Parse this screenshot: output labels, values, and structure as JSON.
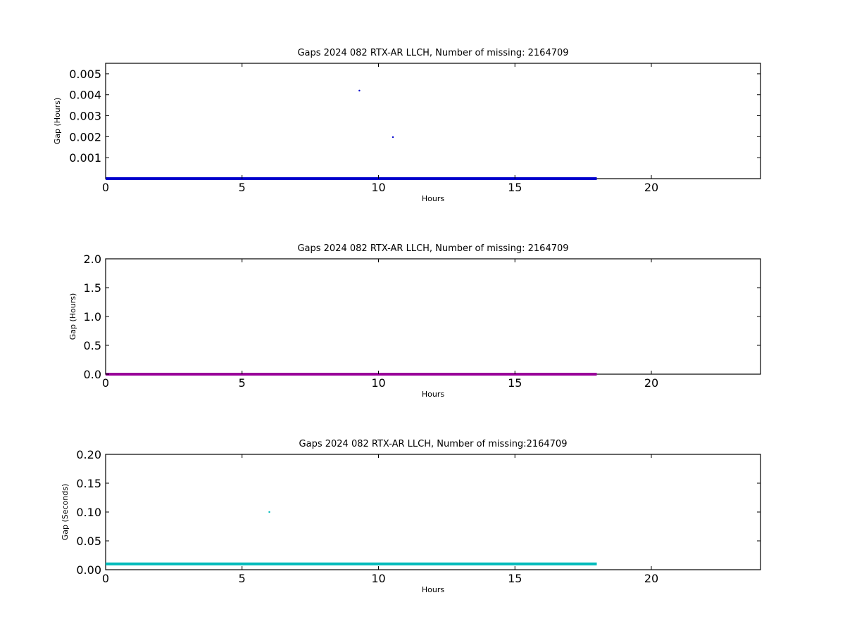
{
  "chart_data": [
    {
      "type": "scatter",
      "title": "Gaps 2024 082 RTX-AR  LLCH, Number of missing: 2164709",
      "xlabel": "Hours",
      "ylabel": "Gap (Hours)",
      "xlim": [
        0,
        24
      ],
      "ylim": [
        0,
        0.0055
      ],
      "xticks": [
        0,
        5,
        10,
        15,
        20
      ],
      "xtick_labels": [
        "0",
        "5",
        "10",
        "15",
        "20"
      ],
      "yticks": [
        0.001,
        0.002,
        0.003,
        0.004,
        0.005
      ],
      "ytick_labels": [
        "0.001",
        "0.002",
        "0.003",
        "0.004",
        "0.005"
      ],
      "grid": false,
      "color": "#0000cc",
      "baseline": {
        "x": [
          0,
          18
        ],
        "y": 0.0
      },
      "points": [
        {
          "x": 9.3,
          "y": 0.0042
        },
        {
          "x": 10.53,
          "y": 0.00198
        }
      ]
    },
    {
      "type": "scatter",
      "title": "Gaps 2024 082 RTX-AR  LLCH, Number of missing: 2164709",
      "xlabel": "Hours",
      "ylabel": "Gap (Hours)",
      "xlim": [
        0,
        24
      ],
      "ylim": [
        0,
        2.0
      ],
      "xticks": [
        0,
        5,
        10,
        15,
        20
      ],
      "xtick_labels": [
        "0",
        "5",
        "10",
        "15",
        "20"
      ],
      "yticks": [
        0.0,
        0.5,
        1.0,
        1.5,
        2.0
      ],
      "ytick_labels": [
        "0.0",
        "0.5",
        "1.0",
        "1.5",
        "2.0"
      ],
      "grid": false,
      "color": "#990099",
      "baseline": {
        "x": [
          0,
          18
        ],
        "y": 0.0
      },
      "points": []
    },
    {
      "type": "scatter",
      "title": "Gaps 2024 082 RTX-AR  LLCH, Number of missing:2164709",
      "xlabel": "Hours",
      "ylabel": "Gap (Seconds)",
      "xlim": [
        0,
        24
      ],
      "ylim": [
        0,
        0.2
      ],
      "xticks": [
        0,
        5,
        10,
        15,
        20
      ],
      "xtick_labels": [
        "0",
        "5",
        "10",
        "15",
        "20"
      ],
      "yticks": [
        0.0,
        0.05,
        0.1,
        0.15,
        0.2
      ],
      "ytick_labels": [
        "0.00",
        "0.05",
        "0.10",
        "0.15",
        "0.20"
      ],
      "grid": false,
      "color": "#00bbbb",
      "baseline": {
        "x": [
          0,
          18
        ],
        "y": 0.01
      },
      "points": [
        {
          "x": 6.0,
          "y": 0.1
        }
      ]
    }
  ]
}
